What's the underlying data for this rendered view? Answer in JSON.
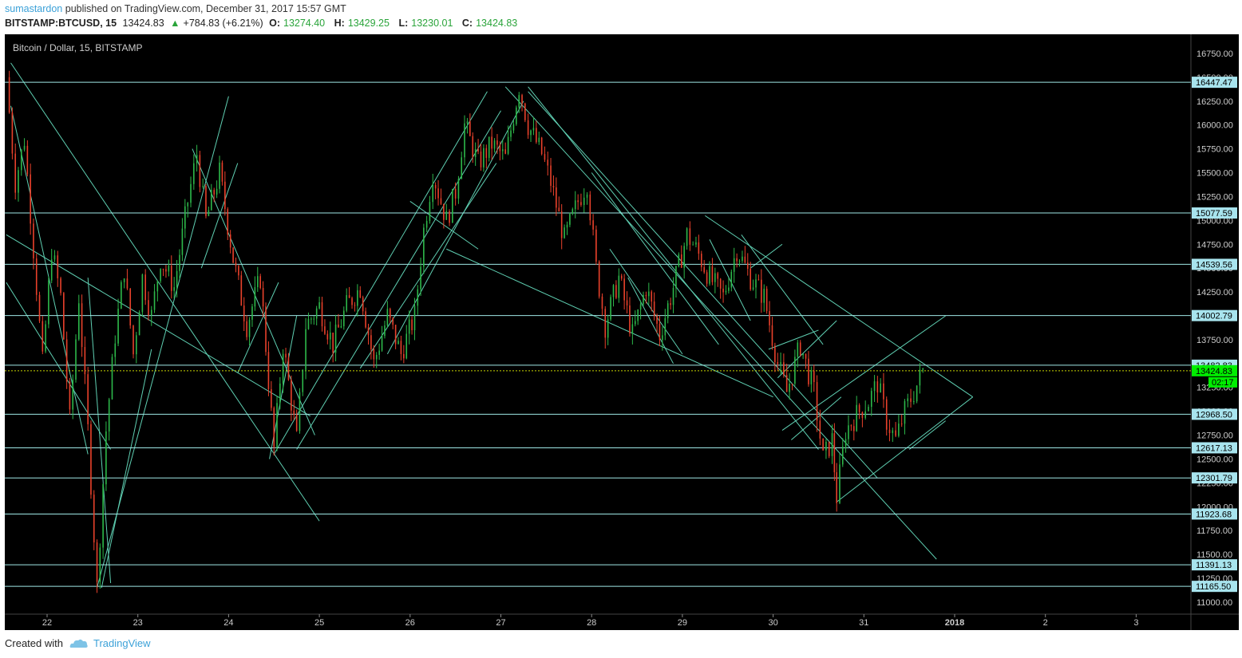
{
  "header": {
    "author": "sumastardon",
    "published_text": " published on TradingView.com, December 31, 2017 15:57 GMT"
  },
  "symbol_bar": {
    "symbol": "BITSTAMP:BTCUSD, 15",
    "last": "13424.83",
    "change": "+784.83 (+6.21%)",
    "o_label": "O:",
    "o_value": "13274.40",
    "h_label": "H:",
    "h_value": "13429.25",
    "l_label": "L:",
    "l_value": "13230.01",
    "c_label": "C:",
    "c_value": "13424.83"
  },
  "footer": {
    "created_with": "Created with",
    "brand": "TradingView"
  },
  "colors": {
    "background": "#000000",
    "level_line": "#9fe8e6",
    "trend_line": "#5fcfb2",
    "candle_up": "#2db84a",
    "candle_down": "#e8412b",
    "axis_label": "#cccccc",
    "level_tag_bg": "#a8e4ee",
    "price_tag_bg": "#00ee00"
  },
  "chart_data": {
    "type": "candlestick",
    "title": "Bitcoin / Dollar, 15, BITSTAMP",
    "y_range": [
      10850,
      16950
    ],
    "y_ticks": [
      "11000.00",
      "11250.00",
      "11500.00",
      "11750.00",
      "12000.00",
      "12250.00",
      "12500.00",
      "12750.00",
      "13000.00",
      "13250.00",
      "13500.00",
      "13750.00",
      "14000.00",
      "14250.00",
      "14500.00",
      "14750.00",
      "15000.00",
      "15250.00",
      "15500.00",
      "15750.00",
      "16000.00",
      "16250.00",
      "16500.00",
      "16750.00"
    ],
    "x_ticks": [
      "22",
      "23",
      "24",
      "25",
      "26",
      "27",
      "28",
      "29",
      "30",
      "31",
      "2018",
      "2",
      "3"
    ],
    "horizontal_levels": [
      16447.47,
      15077.59,
      14539.56,
      14002.79,
      13482.83,
      12968.5,
      12617.13,
      12301.79,
      11923.68,
      11391.13,
      11165.5
    ],
    "level_labels": [
      "16447.47",
      "15077.59",
      "14539.56",
      "14002.79",
      "13482.83",
      "12968.50",
      "12617.13",
      "12301.79",
      "11923.68",
      "11391.13",
      "11165.50"
    ],
    "last_price": 13424.83,
    "last_price_label": "13424.83",
    "countdown_label": "02:17",
    "price_path_key_points": [
      [
        21.55,
        16500
      ],
      [
        21.65,
        15400
      ],
      [
        21.75,
        15850
      ],
      [
        21.85,
        14700
      ],
      [
        21.95,
        13500
      ],
      [
        22.05,
        14700
      ],
      [
        22.15,
        14200
      ],
      [
        22.25,
        12900
      ],
      [
        22.35,
        14200
      ],
      [
        22.45,
        12800
      ],
      [
        22.55,
        11150
      ],
      [
        22.65,
        12800
      ],
      [
        22.75,
        13800
      ],
      [
        22.85,
        14500
      ],
      [
        22.95,
        13600
      ],
      [
        23.05,
        14400
      ],
      [
        23.15,
        14000
      ],
      [
        23.25,
        14600
      ],
      [
        23.4,
        14300
      ],
      [
        23.55,
        15200
      ],
      [
        23.65,
        15700
      ],
      [
        23.75,
        15000
      ],
      [
        23.9,
        15500
      ],
      [
        24.05,
        14600
      ],
      [
        24.2,
        13900
      ],
      [
        24.35,
        14400
      ],
      [
        24.5,
        12600
      ],
      [
        24.6,
        13700
      ],
      [
        24.75,
        12700
      ],
      [
        24.85,
        13900
      ],
      [
        25.0,
        14100
      ],
      [
        25.15,
        13700
      ],
      [
        25.3,
        14100
      ],
      [
        25.45,
        14300
      ],
      [
        25.6,
        13500
      ],
      [
        25.75,
        14000
      ],
      [
        25.9,
        13600
      ],
      [
        26.05,
        14000
      ],
      [
        26.15,
        14900
      ],
      [
        26.25,
        15500
      ],
      [
        26.4,
        15000
      ],
      [
        26.5,
        15300
      ],
      [
        26.6,
        16000
      ],
      [
        26.75,
        15600
      ],
      [
        26.9,
        15800
      ],
      [
        27.05,
        15650
      ],
      [
        27.2,
        16400
      ],
      [
        27.3,
        16000
      ],
      [
        27.45,
        15700
      ],
      [
        27.55,
        15400
      ],
      [
        27.7,
        14800
      ],
      [
        27.85,
        15200
      ],
      [
        27.95,
        15400
      ],
      [
        28.05,
        14500
      ],
      [
        28.15,
        13900
      ],
      [
        28.3,
        14400
      ],
      [
        28.45,
        13800
      ],
      [
        28.6,
        14300
      ],
      [
        28.75,
        13800
      ],
      [
        28.9,
        14300
      ],
      [
        29.05,
        14850
      ],
      [
        29.15,
        14700
      ],
      [
        29.3,
        14400
      ],
      [
        29.45,
        14200
      ],
      [
        29.6,
        14700
      ],
      [
        29.75,
        14400
      ],
      [
        29.9,
        14200
      ],
      [
        30.05,
        13500
      ],
      [
        30.15,
        13200
      ],
      [
        30.3,
        13700
      ],
      [
        30.45,
        13200
      ],
      [
        30.55,
        12500
      ],
      [
        30.65,
        12700
      ],
      [
        30.7,
        12100
      ],
      [
        30.8,
        12800
      ],
      [
        30.95,
        13000
      ],
      [
        31.05,
        13100
      ],
      [
        31.15,
        13300
      ],
      [
        31.25,
        12900
      ],
      [
        31.35,
        12700
      ],
      [
        31.45,
        13000
      ],
      [
        31.55,
        13200
      ],
      [
        31.65,
        13425
      ]
    ]
  }
}
